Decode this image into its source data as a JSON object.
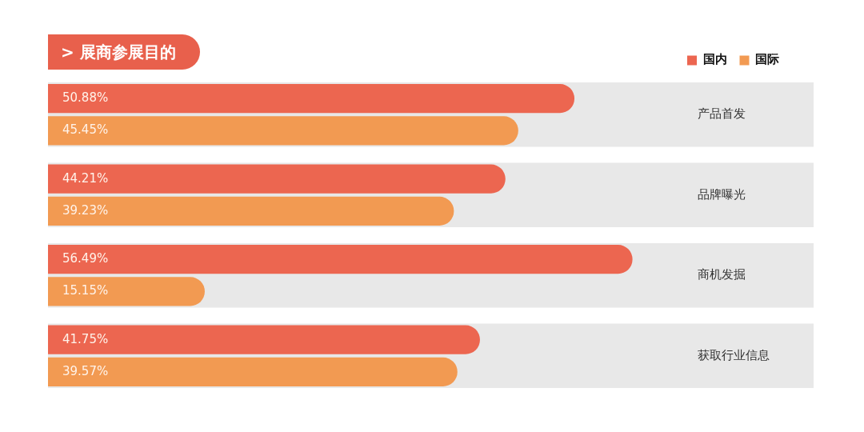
{
  "chart_data": {
    "type": "bar",
    "orientation": "horizontal",
    "title": "> 展商参展目的",
    "categories": [
      "产品首发",
      "品牌曝光",
      "商机发掘",
      "获取行业信息"
    ],
    "series": [
      {
        "name": "国内",
        "color": "#ec6650",
        "values": [
          50.88,
          44.21,
          56.49,
          41.75
        ],
        "value_labels": [
          "50.88%",
          "44.21%",
          "56.49%",
          "41.75%"
        ]
      },
      {
        "name": "国际",
        "color": "#f29a52",
        "values": [
          45.45,
          39.23,
          15.15,
          39.57
        ],
        "value_labels": [
          "45.45%",
          "39.23%",
          "15.15%",
          "39.57%"
        ]
      }
    ],
    "bands": [
      {
        "axis": "y",
        "from": "产品首发",
        "to": "产品首发",
        "color": "#e8e8e8"
      },
      {
        "axis": "y",
        "from": "品牌曝光",
        "to": "品牌曝光",
        "color": "#e8e8e8"
      },
      {
        "axis": "y",
        "from": "商机发掘",
        "to": "商机发掘",
        "color": "#e8e8e8"
      },
      {
        "axis": "y",
        "from": "获取行业信息",
        "to": "获取行业信息",
        "color": "#e8e8e8"
      }
    ],
    "legend": "top right",
    "grid": false,
    "tick_labels": "y"
  }
}
